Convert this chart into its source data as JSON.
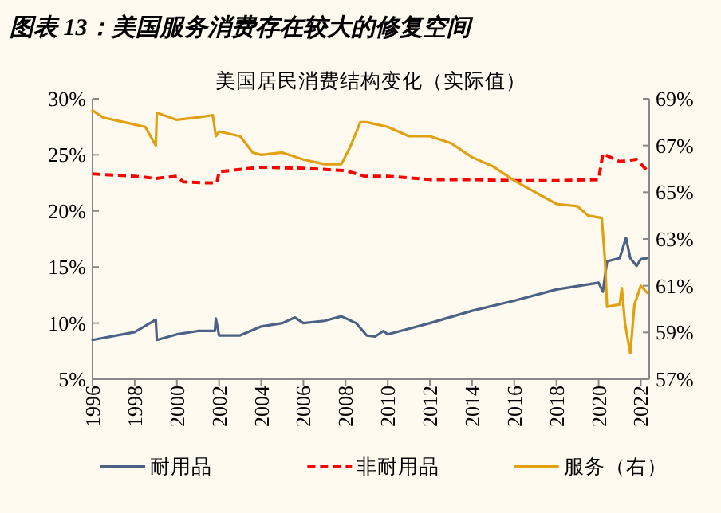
{
  "chart_data": {
    "type": "line",
    "title": "图表 13：美国服务消费存在较大的修复空间",
    "subtitle": "美国居民消费结构变化（实际值）",
    "xlim": [
      1996,
      2022.4
    ],
    "xticks": [
      1996,
      1998,
      2000,
      2002,
      2004,
      2006,
      2008,
      2010,
      2012,
      2014,
      2016,
      2018,
      2020,
      2022
    ],
    "ylim": [
      5,
      30
    ],
    "yticks": [
      {
        "value": 5,
        "label": "5%"
      },
      {
        "value": 10,
        "label": "10%"
      },
      {
        "value": 15,
        "label": "15%"
      },
      {
        "value": 20,
        "label": "20%"
      },
      {
        "value": 25,
        "label": "25%"
      },
      {
        "value": 30,
        "label": "30%"
      }
    ],
    "y2lim": [
      57,
      69
    ],
    "y2ticks": [
      {
        "value": 57,
        "label": "57%"
      },
      {
        "value": 59,
        "label": "59%"
      },
      {
        "value": 61,
        "label": "61%"
      },
      {
        "value": 63,
        "label": "63%"
      },
      {
        "value": 65,
        "label": "65%"
      },
      {
        "value": 67,
        "label": "67%"
      },
      {
        "value": 69,
        "label": "69%"
      }
    ],
    "grid": false,
    "legend": "bottom",
    "marker": "none",
    "series": [
      {
        "name": "耐用品",
        "color": "#4a6285",
        "line_style": "solid",
        "x": [
          1996,
          1998,
          1999,
          1999.05,
          2000,
          2001,
          2001.8,
          2001.85,
          2002,
          2003,
          2004,
          2005,
          2005.6,
          2006,
          2007,
          2007.8,
          2008.5,
          2009,
          2009.4,
          2009.8,
          2010,
          2012,
          2014,
          2016,
          2018,
          2020,
          2020.2,
          2020.4,
          2021,
          2021.3,
          2021.5,
          2021.8,
          2022,
          2022.3
        ],
        "values": [
          8.5,
          9.2,
          10.3,
          8.5,
          9.0,
          9.3,
          9.3,
          10.4,
          8.9,
          8.9,
          9.7,
          10.0,
          10.5,
          10.0,
          10.2,
          10.6,
          10.0,
          8.9,
          8.8,
          9.3,
          9.0,
          10.0,
          11.1,
          12.0,
          13.0,
          13.6,
          12.8,
          15.5,
          15.8,
          17.6,
          15.8,
          15.1,
          15.7,
          15.8
        ]
      },
      {
        "name": "非耐用品",
        "color": "#ff0000",
        "line_style": "dashed",
        "x": [
          1996,
          1998,
          1999,
          2000,
          2000.3,
          2001.5,
          2001.9,
          2002,
          2004,
          2006,
          2008,
          2008.9,
          2010,
          2012,
          2014,
          2016,
          2018,
          2020,
          2020.2,
          2021,
          2021.8,
          2022.3
        ],
        "values": [
          23.3,
          23.1,
          22.9,
          23.1,
          22.6,
          22.5,
          22.5,
          23.5,
          23.9,
          23.8,
          23.6,
          23.1,
          23.1,
          22.8,
          22.8,
          22.7,
          22.7,
          22.8,
          25.1,
          24.4,
          24.6,
          23.6
        ]
      },
      {
        "name": "服务（右）",
        "color": "#e0a010",
        "line_style": "solid",
        "axis": "y2",
        "x": [
          1996,
          1996.5,
          1997.5,
          1998.5,
          1999,
          1999.05,
          2000,
          2001,
          2001.7,
          2001.85,
          2002,
          2003,
          2003.6,
          2004,
          2005,
          2006,
          2007,
          2007.8,
          2008.2,
          2008.7,
          2009,
          2010,
          2011,
          2012,
          2013,
          2014,
          2015,
          2016,
          2017,
          2018,
          2019,
          2019.5,
          2020.15,
          2020.3,
          2020.4,
          2021,
          2021.1,
          2021.25,
          2021.5,
          2021.7,
          2022,
          2022.3
        ],
        "values": [
          68.5,
          68.2,
          68.0,
          67.8,
          67.0,
          68.4,
          68.1,
          68.2,
          68.3,
          67.4,
          67.6,
          67.4,
          66.7,
          66.6,
          66.7,
          66.4,
          66.2,
          66.2,
          66.9,
          68.0,
          68.0,
          67.8,
          67.4,
          67.4,
          67.1,
          66.5,
          66.1,
          65.5,
          65.0,
          64.5,
          64.4,
          64.0,
          63.9,
          62.1,
          60.1,
          60.2,
          60.9,
          59.4,
          58.1,
          60.2,
          61.0,
          60.7
        ]
      }
    ]
  }
}
